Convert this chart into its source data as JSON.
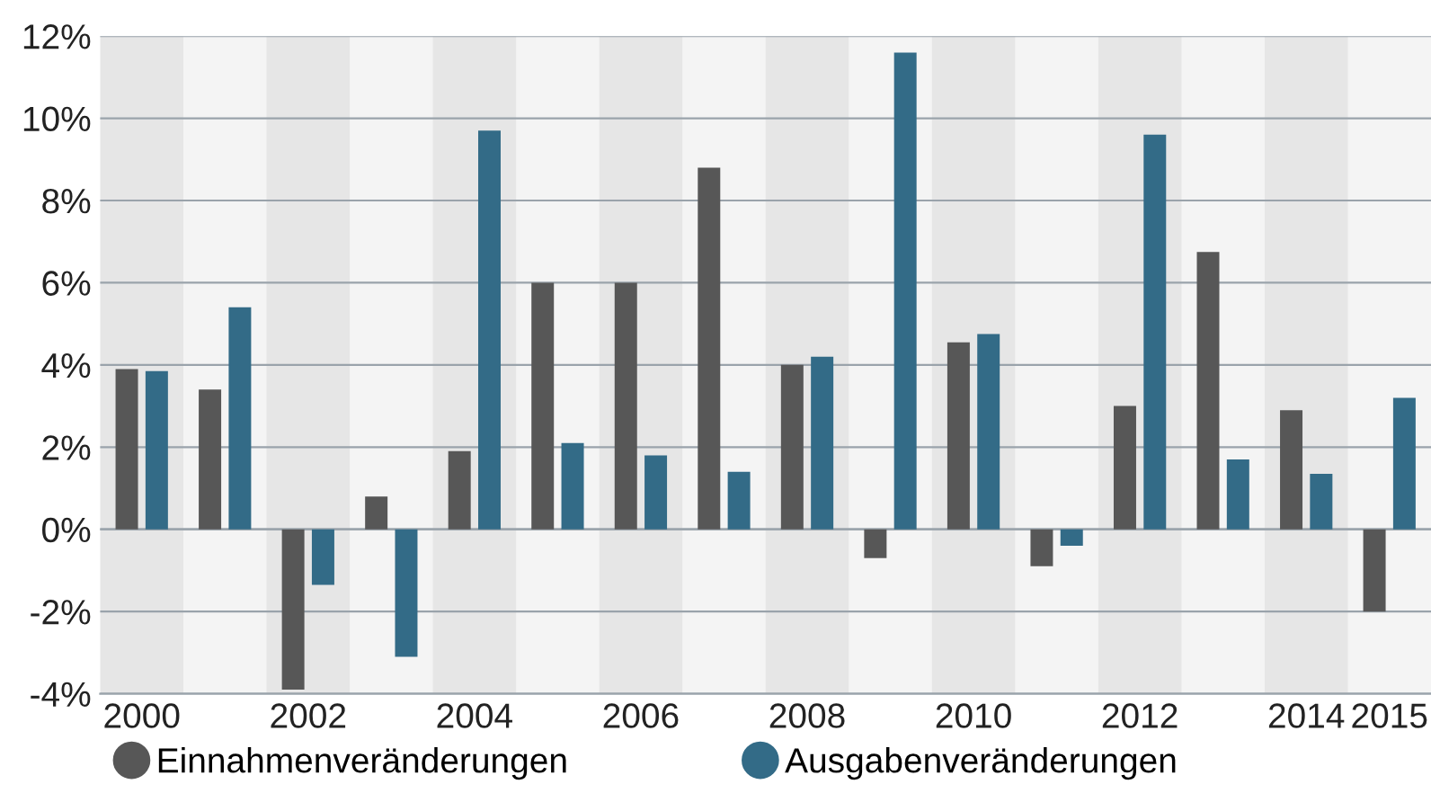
{
  "chart_data": {
    "type": "bar",
    "categories": [
      "2000",
      null,
      "2002",
      null,
      "2004",
      null,
      "2006",
      null,
      "2008",
      null,
      "2010",
      null,
      "2012",
      null,
      "2014",
      "2015"
    ],
    "series": [
      {
        "name": "Einnahmenveränderungen",
        "color": "#575757",
        "values": [
          3.9,
          3.4,
          -3.9,
          0.8,
          1.9,
          6.0,
          6.0,
          8.8,
          4.0,
          -0.7,
          4.55,
          -0.9,
          3.0,
          6.75,
          2.9,
          -2.0
        ]
      },
      {
        "name": "Ausgabenveränderungen",
        "color": "#336b87",
        "values": [
          3.85,
          5.4,
          -1.35,
          -3.1,
          9.7,
          2.1,
          1.8,
          1.4,
          4.2,
          11.6,
          4.75,
          -0.4,
          9.6,
          1.7,
          1.35,
          3.2
        ]
      }
    ],
    "ylim": [
      -4,
      12
    ],
    "yticks": [
      {
        "value": -4,
        "label": "-4%"
      },
      {
        "value": -2,
        "label": "-2%"
      },
      {
        "value": 0,
        "label": "0%"
      },
      {
        "value": 2,
        "label": "2%"
      },
      {
        "value": 4,
        "label": "4%"
      },
      {
        "value": 6,
        "label": "6%"
      },
      {
        "value": 8,
        "label": "8%"
      },
      {
        "value": 10,
        "label": "10%"
      },
      {
        "value": 12,
        "label": "12%"
      }
    ],
    "bands": [
      {
        "axis": "x",
        "from": "2000",
        "to": "2000",
        "color": "#e6e6e6"
      },
      {
        "axis": "x",
        "from": "2002",
        "to": "2002",
        "color": "#e6e6e6"
      },
      {
        "axis": "x",
        "from": "2004",
        "to": "2004",
        "color": "#e6e6e6"
      },
      {
        "axis": "x",
        "from": "2006",
        "to": "2006",
        "color": "#e6e6e6"
      },
      {
        "axis": "x",
        "from": "2008",
        "to": "2008",
        "color": "#e6e6e6"
      },
      {
        "axis": "x",
        "from": "2010",
        "to": "2010",
        "color": "#e6e6e6"
      },
      {
        "axis": "x",
        "from": "2012",
        "to": "2012",
        "color": "#e6e6e6"
      },
      {
        "axis": "x",
        "from": "2014",
        "to": "2014",
        "color": "#e6e6e6"
      }
    ],
    "grid": "y",
    "legend": "bottom",
    "marker": "circle"
  }
}
